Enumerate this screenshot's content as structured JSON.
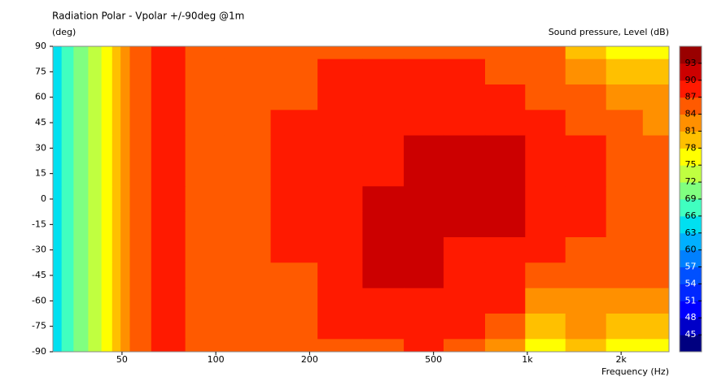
{
  "chart_data": {
    "type": "contour",
    "title": "Radiation Polar - Vpolar +/-90deg @1m",
    "y_label": "(deg)",
    "z_label": "Sound pressure, Level  (dB)",
    "x_label": "Frequency  (Hz)",
    "x_scale": "log",
    "xlim": [
      30,
      2850
    ],
    "xticks": [
      50,
      100,
      200,
      500,
      {
        "value": 1000,
        "label": "1k"
      },
      {
        "value": 2000,
        "label": "2k"
      }
    ],
    "ylim": [
      -90,
      90
    ],
    "yticks": [
      90,
      75,
      60,
      45,
      30,
      15,
      0,
      -15,
      -30,
      -45,
      -60,
      -75,
      -90
    ],
    "x": [
      31,
      33,
      37,
      41,
      45,
      48,
      51,
      55,
      70,
      91,
      125,
      180,
      250,
      350,
      460,
      630,
      850,
      1140,
      1540,
      2080,
      2650
    ],
    "y": [
      90,
      75,
      60,
      45,
      30,
      15,
      0,
      -15,
      -30,
      -45,
      -60,
      -75,
      -90
    ],
    "z": [
      [
        64,
        67,
        70,
        73,
        76,
        79,
        82,
        85,
        88,
        85,
        85,
        85,
        85,
        85,
        85,
        85,
        85,
        85,
        79,
        76,
        76
      ],
      [
        64,
        67,
        70,
        73,
        76,
        79,
        82,
        85,
        88,
        85,
        85,
        85,
        88,
        88,
        88,
        88,
        85,
        85,
        82,
        79,
        79
      ],
      [
        64,
        67,
        70,
        73,
        76,
        79,
        82,
        85,
        88,
        85,
        85,
        85,
        88,
        88,
        88,
        88,
        88,
        85,
        85,
        82,
        82
      ],
      [
        64,
        67,
        70,
        73,
        76,
        79,
        82,
        85,
        88,
        85,
        85,
        88,
        88,
        88,
        88,
        88,
        88,
        88,
        85,
        85,
        82
      ],
      [
        64,
        67,
        70,
        73,
        76,
        79,
        82,
        85,
        88,
        85,
        85,
        88,
        88,
        88,
        91,
        91,
        91,
        88,
        88,
        85,
        85
      ],
      [
        64,
        67,
        70,
        73,
        76,
        79,
        82,
        85,
        88,
        85,
        85,
        88,
        88,
        88,
        91,
        91,
        91,
        88,
        88,
        85,
        85
      ],
      [
        64,
        67,
        70,
        73,
        76,
        79,
        82,
        85,
        88,
        85,
        85,
        88,
        88,
        91,
        91,
        91,
        91,
        88,
        88,
        85,
        85
      ],
      [
        64,
        67,
        70,
        73,
        76,
        79,
        82,
        85,
        88,
        85,
        85,
        88,
        88,
        91,
        91,
        91,
        91,
        88,
        88,
        85,
        85
      ],
      [
        64,
        67,
        70,
        73,
        76,
        79,
        82,
        85,
        88,
        85,
        85,
        88,
        88,
        91,
        91,
        88,
        88,
        88,
        85,
        85,
        85
      ],
      [
        64,
        67,
        70,
        73,
        76,
        79,
        82,
        85,
        88,
        85,
        85,
        85,
        88,
        91,
        91,
        88,
        88,
        85,
        85,
        85,
        85
      ],
      [
        64,
        67,
        70,
        73,
        76,
        79,
        82,
        85,
        88,
        85,
        85,
        85,
        88,
        88,
        88,
        88,
        88,
        82,
        82,
        82,
        82
      ],
      [
        64,
        67,
        70,
        73,
        76,
        79,
        82,
        85,
        88,
        85,
        85,
        85,
        88,
        88,
        88,
        88,
        85,
        79,
        82,
        79,
        79
      ],
      [
        64,
        67,
        70,
        73,
        76,
        79,
        82,
        85,
        88,
        85,
        85,
        85,
        85,
        85,
        88,
        85,
        82,
        76,
        79,
        76,
        76
      ]
    ],
    "levels": [
      45,
      48,
      51,
      54,
      57,
      60,
      63,
      66,
      69,
      72,
      75,
      78,
      81,
      84,
      87,
      90,
      93
    ],
    "colors": [
      "#000080",
      "#0000c8",
      "#0000ff",
      "#0028ff",
      "#0050ff",
      "#0080ff",
      "#00b0ff",
      "#00e0f0",
      "#40ffc0",
      "#80ff80",
      "#c0ff40",
      "#ffff00",
      "#ffc000",
      "#ff9000",
      "#ff5a00",
      "#ff1a00",
      "#cc0000",
      "#990000"
    ]
  }
}
